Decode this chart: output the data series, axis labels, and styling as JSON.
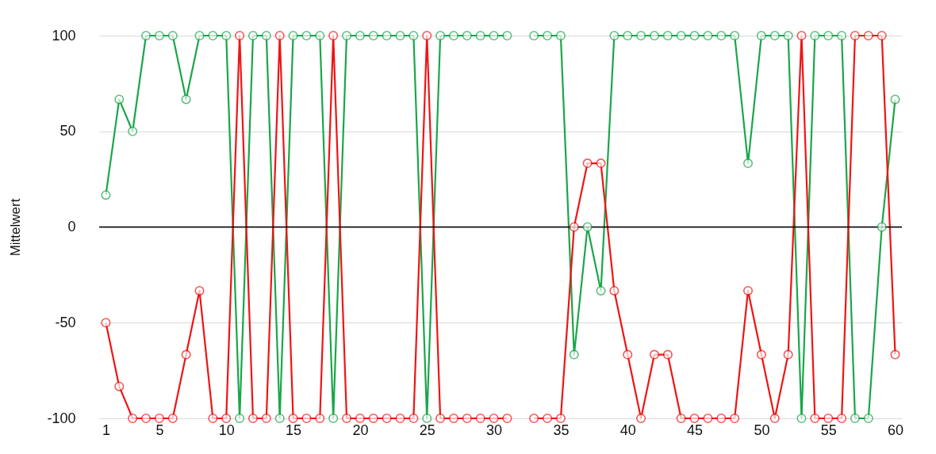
{
  "chart_data": {
    "type": "line",
    "ylabel": "Mittelwert",
    "x": [
      1,
      2,
      3,
      4,
      5,
      6,
      7,
      8,
      9,
      10,
      11,
      12,
      13,
      14,
      15,
      16,
      17,
      18,
      19,
      20,
      21,
      22,
      23,
      24,
      25,
      26,
      27,
      28,
      29,
      30,
      31,
      32,
      33,
      34,
      35,
      36,
      37,
      38,
      39,
      40,
      41,
      42,
      43,
      44,
      45,
      46,
      47,
      48,
      49,
      50,
      51,
      52,
      53,
      54,
      55,
      56,
      57,
      58,
      59,
      60
    ],
    "series": [
      {
        "color": "#1aa64a",
        "values": [
          16.7,
          66.7,
          50,
          100,
          100,
          100,
          66.7,
          100,
          100,
          100,
          -100,
          100,
          100,
          -100,
          100,
          100,
          100,
          -100,
          100,
          100,
          100,
          100,
          100,
          100,
          -100,
          100,
          100,
          100,
          100,
          100,
          100,
          null,
          100,
          100,
          100,
          -66.7,
          0,
          -33.3,
          100,
          100,
          100,
          100,
          100,
          100,
          100,
          100,
          100,
          100,
          33.3,
          100,
          100,
          100,
          -100,
          100,
          100,
          100,
          -100,
          -100,
          0,
          66.7
        ]
      },
      {
        "color": "#f01414",
        "values": [
          -50,
          -83.3,
          -100,
          -100,
          -100,
          -100,
          -66.7,
          -33.3,
          -100,
          -100,
          100,
          -100,
          -100,
          100,
          -100,
          -100,
          -100,
          100,
          -100,
          -100,
          -100,
          -100,
          -100,
          -100,
          100,
          -100,
          -100,
          -100,
          -100,
          -100,
          -100,
          null,
          -100,
          -100,
          -100,
          0,
          33.3,
          33.3,
          -33.3,
          -66.7,
          -100,
          -66.7,
          -66.7,
          -100,
          -100,
          -100,
          -100,
          -100,
          -33.3,
          -66.7,
          -100,
          -66.7,
          100,
          -100,
          -100,
          -100,
          100,
          100,
          100,
          -66.7
        ]
      }
    ],
    "xlim": [
      0.5,
      60.5
    ],
    "xticks": [
      1,
      5,
      10,
      15,
      20,
      25,
      30,
      35,
      40,
      45,
      50,
      55,
      60
    ],
    "ylim": [
      -100,
      100
    ],
    "yticks": [
      -100,
      -50,
      0,
      50,
      100
    ],
    "ref_lines": [
      {
        "axis": "y",
        "value": 0,
        "color": "#000000"
      }
    ],
    "grid": "y",
    "legend": false,
    "marker": "circle",
    "line_style": "solid"
  }
}
